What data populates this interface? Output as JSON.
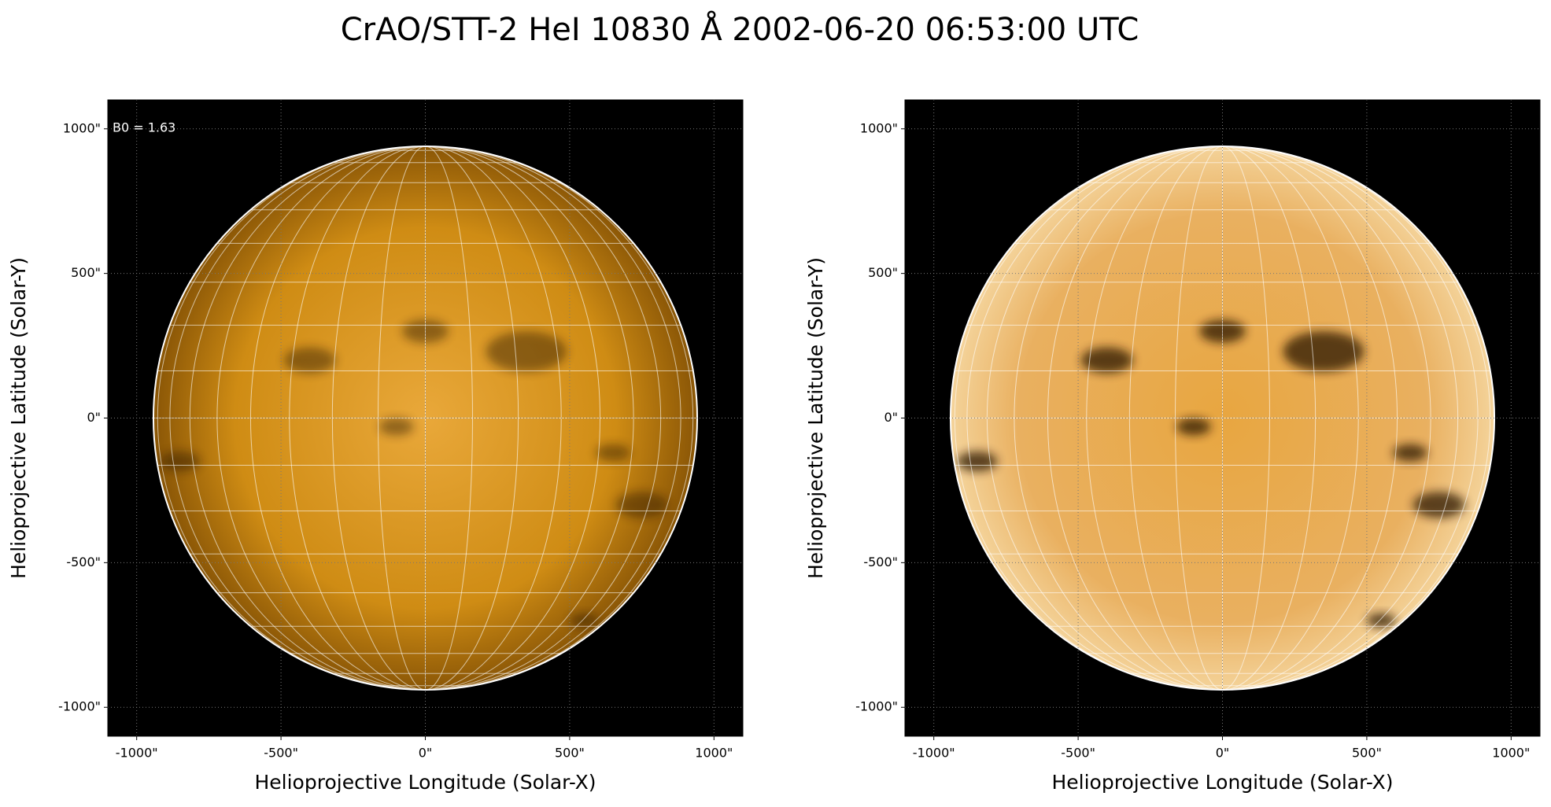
{
  "title": "CrAO/STT-2 HeI 10830 Å 2002-06-20 06:53:00 UTC",
  "chart_data": [
    {
      "type": "image",
      "xlabel": "Helioprojective Longitude (Solar-X)",
      "ylabel": "Helioprojective Latitude (Solar-Y)",
      "annotation": "B0 = 1.63",
      "style": "plain",
      "xlim": [
        -1100,
        1100
      ],
      "ylim": [
        -1100,
        1100
      ],
      "xticks": [
        {
          "value": -1000,
          "label": "-1000\""
        },
        {
          "value": -500,
          "label": "-500\""
        },
        {
          "value": 0,
          "label": "0\""
        },
        {
          "value": 500,
          "label": "500\""
        },
        {
          "value": 1000,
          "label": "1000\""
        }
      ],
      "yticks": [
        {
          "value": -1000,
          "label": "-1000\""
        },
        {
          "value": -500,
          "label": "-500\""
        },
        {
          "value": 0,
          "label": "0\""
        },
        {
          "value": 500,
          "label": "500\""
        },
        {
          "value": 1000,
          "label": "1000\""
        }
      ],
      "grid": true
    },
    {
      "type": "image",
      "xlabel": "Helioprojective Longitude (Solar-X)",
      "ylabel": "Helioprojective Latitude (Solar-Y)",
      "style": "enhanced",
      "xlim": [
        -1100,
        1100
      ],
      "ylim": [
        -1100,
        1100
      ],
      "xticks": [
        {
          "value": -1000,
          "label": "-1000\""
        },
        {
          "value": -500,
          "label": "-500\""
        },
        {
          "value": 0,
          "label": "0\""
        },
        {
          "value": 500,
          "label": "500\""
        },
        {
          "value": 1000,
          "label": "1000\""
        }
      ],
      "yticks": [
        {
          "value": -1000,
          "label": "-1000\""
        },
        {
          "value": -500,
          "label": "-500\""
        },
        {
          "value": 0,
          "label": "0\""
        },
        {
          "value": 500,
          "label": "500\""
        },
        {
          "value": 1000,
          "label": "1000\""
        }
      ],
      "grid": true
    }
  ]
}
